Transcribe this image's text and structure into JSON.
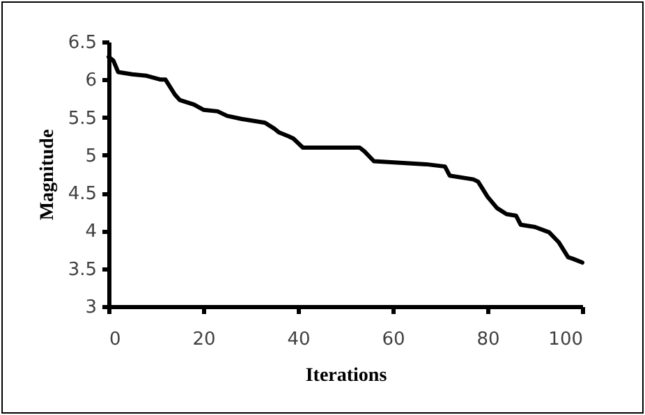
{
  "chart_data": {
    "type": "line",
    "xlabel": "Iterations",
    "ylabel": "Magnitude",
    "x": [
      0,
      1,
      2,
      5,
      8,
      11,
      12,
      14,
      15,
      18,
      20,
      23,
      25,
      28,
      33,
      35,
      36,
      38,
      39,
      41,
      53,
      54,
      56,
      67,
      71,
      72,
      77,
      78,
      80,
      82,
      84,
      86,
      87,
      90,
      93,
      95,
      97,
      98,
      100
    ],
    "series": [
      {
        "color": "#000000",
        "values": [
          6.3,
          6.25,
          6.1,
          6.07,
          6.05,
          6.0,
          6.0,
          5.8,
          5.73,
          5.67,
          5.6,
          5.58,
          5.52,
          5.48,
          5.43,
          5.35,
          5.3,
          5.25,
          5.22,
          5.1,
          5.1,
          5.05,
          4.92,
          4.88,
          4.85,
          4.73,
          4.68,
          4.65,
          4.45,
          4.3,
          4.22,
          4.2,
          4.08,
          4.05,
          3.98,
          3.85,
          3.65,
          3.63,
          3.58
        ]
      }
    ],
    "xlim": [
      0,
      100
    ],
    "xticks": [
      0,
      20,
      40,
      60,
      80,
      100
    ],
    "ylim": [
      3,
      6.5
    ],
    "yticks": [
      3,
      3.5,
      4,
      4.5,
      5,
      5.5,
      6,
      6.5
    ],
    "grid": false,
    "legend": false,
    "line_style": "solid"
  }
}
